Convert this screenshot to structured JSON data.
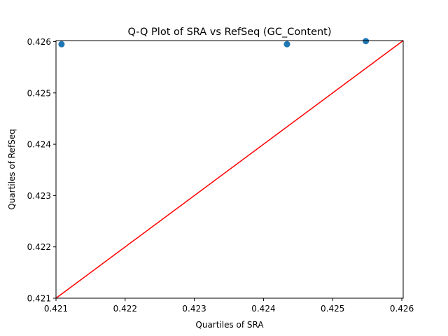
{
  "chart_data": {
    "type": "scatter",
    "title": "Q-Q Plot of SRA vs RefSeq (GC_Content)",
    "xlabel": "Quartiles of SRA",
    "ylabel": "Quartiles of RefSeq",
    "xlim": [
      0.421,
      0.42602
    ],
    "ylim": [
      0.421,
      0.42602
    ],
    "xticks": [
      "0.421",
      "0.422",
      "0.423",
      "0.424",
      "0.425",
      "0.426"
    ],
    "yticks": [
      "0.421",
      "0.422",
      "0.423",
      "0.424",
      "0.425",
      "0.426"
    ],
    "grid": false,
    "point_color": "#1f77b4",
    "line_color": "#ff0000",
    "points": [
      {
        "x": 0.42108,
        "y": 0.42595
      },
      {
        "x": 0.42434,
        "y": 0.42595
      },
      {
        "x": 0.42548,
        "y": 0.42601
      }
    ],
    "reference_line": {
      "from": [
        0.421,
        0.421
      ],
      "to": [
        0.42602,
        0.42602
      ]
    }
  }
}
